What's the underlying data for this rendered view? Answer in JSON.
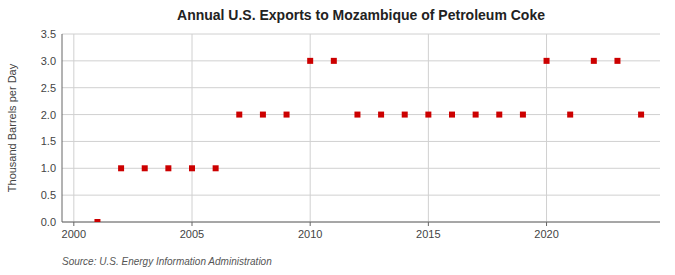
{
  "chart_data": {
    "type": "scatter",
    "title": "Annual U.S. Exports to Mozambique of Petroleum Coke",
    "ylabel": "Thousand Barrels per Day",
    "source": "Source: U.S. Energy Information Administration",
    "x": [
      2001,
      2002,
      2003,
      2004,
      2005,
      2006,
      2007,
      2008,
      2009,
      2010,
      2011,
      2012,
      2013,
      2014,
      2015,
      2016,
      2017,
      2018,
      2019,
      2020,
      2021,
      2022,
      2023,
      2024
    ],
    "values": [
      0.0,
      1.0,
      1.0,
      1.0,
      1.0,
      1.0,
      2.0,
      2.0,
      2.0,
      3.0,
      3.0,
      2.0,
      2.0,
      2.0,
      2.0,
      2.0,
      2.0,
      2.0,
      2.0,
      3.0,
      2.0,
      3.0,
      3.0,
      2.0
    ],
    "color": "#cc0000",
    "marker": "square",
    "xlim": [
      1999.5,
      2024.8
    ],
    "ylim": [
      0.0,
      3.5
    ],
    "xticks": [
      2000,
      2005,
      2010,
      2015,
      2020
    ],
    "yticks": [
      {
        "value": 0.0,
        "label": "0.0"
      },
      0.5,
      {
        "value": 1.0,
        "label": "1.0"
      },
      1.5,
      {
        "value": 2.0,
        "label": "2.0"
      },
      2.5,
      {
        "value": 3.0,
        "label": "3.0"
      },
      3.5
    ],
    "grid": true
  }
}
